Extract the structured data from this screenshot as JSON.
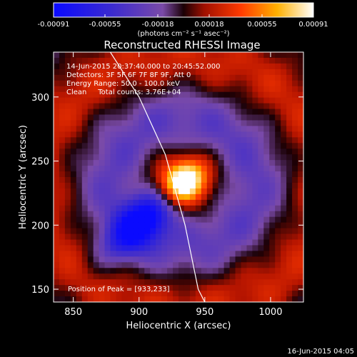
{
  "chart_data": {
    "type": "heatmap",
    "title": "Reconstructed RHESSI Image",
    "xlabel": "Heliocentric X (arcsec)",
    "ylabel": "Heliocentric Y (arcsec)",
    "xlim": [
      835,
      1025
    ],
    "ylim": [
      140,
      335
    ],
    "x_ticks": [
      850,
      900,
      950,
      1000
    ],
    "y_ticks": [
      150,
      200,
      250,
      300
    ],
    "colorbar": {
      "ticks": [
        "-0.00091",
        "-0.00055",
        "-0.00018",
        "0.00018",
        "0.00055",
        "0.00091"
      ],
      "range": [
        -0.00091,
        0.00091
      ],
      "unit_label": "(photons cm⁻² s⁻¹ asec⁻²)"
    },
    "annotations": [
      "14-Jun-2015 20:37:40.000 to 20:45:52.000",
      "Detectors: 3F 5F 6F 7F 8F 9F, Att 0",
      "Energy Range: 50.0 - 100.0 keV",
      "Clean     Total counts: 3.76E+04"
    ],
    "peak_label": "Position of Peak = [933,233]",
    "peak_position": [
      933,
      233
    ],
    "footer_timestamp": "16-Jun-2015 04:05",
    "limb_points": [
      [
        875,
        340
      ],
      [
        900,
        300
      ],
      [
        920,
        255
      ],
      [
        935,
        200
      ],
      [
        945,
        150
      ],
      [
        950,
        140
      ]
    ],
    "colors": {
      "bg": "#000000",
      "text": "#ffffff"
    }
  }
}
